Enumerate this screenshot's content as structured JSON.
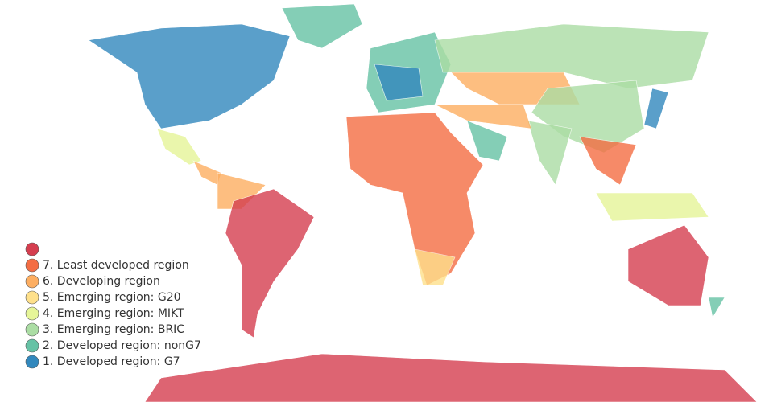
{
  "chart_data": {
    "type": "choropleth",
    "categories": [
      null,
      "7. Least developed region",
      "6. Developing region",
      "5. Emerging region: G20",
      "4. Emerging region: MIKT",
      "3. Emerging region: BRIC",
      "2. Developed region: nonG7",
      "1. Developed region: G7"
    ],
    "colors": [
      "#d53e4f",
      "#f46d43",
      "#fdae61",
      "#fee08b",
      "#e6f598",
      "#abdda4",
      "#66c2a5",
      "#3288bd"
    ]
  }
}
